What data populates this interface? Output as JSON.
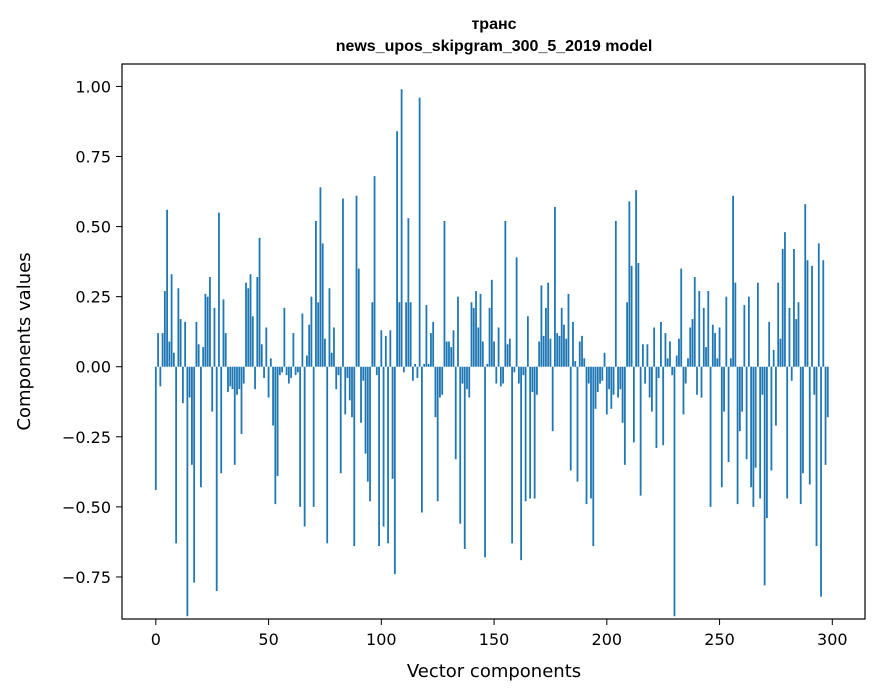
{
  "chart_data": {
    "type": "bar",
    "title_lines": [
      "транс",
      "news_upos_skipgram_300_5_2019 model"
    ],
    "xlabel": "Vector components",
    "ylabel": "Components values",
    "xlim": [
      -15,
      314.5
    ],
    "ylim": [
      -0.9,
      1.08
    ],
    "xticks": [
      0,
      50,
      100,
      150,
      200,
      250,
      300
    ],
    "xtick_labels": [
      "0",
      "50",
      "100",
      "150",
      "200",
      "250",
      "300"
    ],
    "yticks": [
      1.0,
      0.75,
      0.5,
      0.25,
      0.0,
      -0.25,
      -0.5,
      -0.75
    ],
    "ytick_labels": [
      "1.00",
      "0.75",
      "0.50",
      "0.25",
      "0.00",
      "−0.25",
      "−0.50",
      "−0.75"
    ],
    "bar_color": "#1f77b4",
    "grid": false,
    "values": [
      -0.44,
      0.12,
      -0.07,
      0.12,
      0.27,
      0.56,
      0.09,
      0.33,
      0.05,
      -0.63,
      0.28,
      0.17,
      -0.13,
      0.16,
      -0.89,
      -0.11,
      -0.35,
      -0.77,
      0.16,
      0.08,
      -0.43,
      0.07,
      0.26,
      0.25,
      0.32,
      -0.16,
      0.21,
      -0.8,
      0.55,
      -0.38,
      0.24,
      0.12,
      -0.09,
      -0.07,
      -0.08,
      -0.35,
      -0.1,
      -0.08,
      -0.24,
      -0.06,
      0.3,
      0.28,
      0.33,
      0.18,
      -0.08,
      0.32,
      0.46,
      0.08,
      -0.04,
      0.14,
      -0.11,
      0.03,
      -0.21,
      -0.49,
      -0.39,
      -0.03,
      -0.02,
      0.21,
      -0.03,
      -0.06,
      -0.04,
      0.12,
      -0.03,
      -0.02,
      -0.5,
      0.19,
      -0.57,
      0.04,
      0.15,
      0.25,
      -0.5,
      0.52,
      0.23,
      0.64,
      0.44,
      0.1,
      -0.63,
      0.28,
      0.05,
      0.14,
      -0.08,
      -0.03,
      -0.38,
      0.6,
      -0.17,
      -0.04,
      -0.12,
      -0.18,
      -0.64,
      0.61,
      0.35,
      -0.2,
      -0.05,
      -0.31,
      -0.41,
      -0.48,
      0.23,
      0.68,
      -0.03,
      -0.64,
      0.13,
      -0.57,
      0.11,
      -0.63,
      0.13,
      -0.4,
      -0.74,
      0.84,
      0.23,
      0.99,
      -0.02,
      0.23,
      0.53,
      0.23,
      -0.05,
      0.01,
      -0.04,
      0.96,
      -0.52,
      0.01,
      0.22,
      0.01,
      0.12,
      0.16,
      -0.18,
      -0.48,
      -0.11,
      -0.1,
      0.52,
      0.09,
      0.09,
      0.07,
      0.13,
      -0.33,
      0.25,
      -0.56,
      -0.06,
      -0.65,
      -0.08,
      -0.11,
      0.23,
      0.21,
      0.27,
      0.14,
      0.26,
      0.09,
      -0.68,
      0.01,
      0.21,
      0.31,
      0.09,
      -0.06,
      0.14,
      -0.07,
      -0.06,
      0.52,
      0.08,
      0.1,
      -0.63,
      -0.02,
      0.39,
      -0.06,
      -0.69,
      -0.03,
      -0.48,
      0.18,
      -0.47,
      -0.09,
      -0.47,
      -0.1,
      0.09,
      0.29,
      0.11,
      0.21,
      0.3,
      0.1,
      -0.23,
      0.57,
      0.12,
      0.11,
      0.21,
      0.15,
      0.1,
      0.26,
      -0.37,
      0.16,
      0.02,
      -0.41,
      0.09,
      0.11,
      0.03,
      -0.49,
      -0.06,
      -0.47,
      -0.64,
      -0.15,
      -0.09,
      -0.06,
      -0.05,
      0.05,
      -0.17,
      -0.08,
      -0.15,
      -0.1,
      0.52,
      -0.11,
      -0.08,
      -0.2,
      -0.35,
      0.23,
      0.59,
      0.36,
      -0.27,
      0.63,
      0.37,
      -0.46,
      0.08,
      -0.06,
      0.08,
      -0.11,
      -0.16,
      0.14,
      -0.29,
      -0.04,
      0.16,
      -0.28,
      0.12,
      0.03,
      0.09,
      -0.03,
      -0.89,
      0.04,
      0.1,
      0.35,
      -0.17,
      -0.06,
      0.03,
      0.14,
      0.17,
      0.32,
      -0.1,
      0.27,
      -0.11,
      0.21,
      0.07,
      0.27,
      -0.5,
      0.15,
      0.12,
      0.03,
      0.14,
      -0.43,
      -0.16,
      0.25,
      -0.34,
      0.03,
      0.61,
      0.3,
      -0.49,
      -0.23,
      -0.16,
      0.22,
      -0.33,
      0.25,
      -0.43,
      -0.5,
      -0.36,
      0.3,
      -0.47,
      -0.1,
      -0.78,
      -0.54,
      0.16,
      -0.37,
      0.06,
      -0.21,
      0.3,
      0.1,
      0.42,
      0.48,
      -0.47,
      0.21,
      -0.05,
      0.42,
      0.17,
      0.23,
      -0.49,
      -0.38,
      0.58,
      0.38,
      -0.42,
      0.36,
      -0.1,
      -0.64,
      0.44,
      -0.82,
      0.38,
      -0.35,
      -0.18
    ]
  }
}
